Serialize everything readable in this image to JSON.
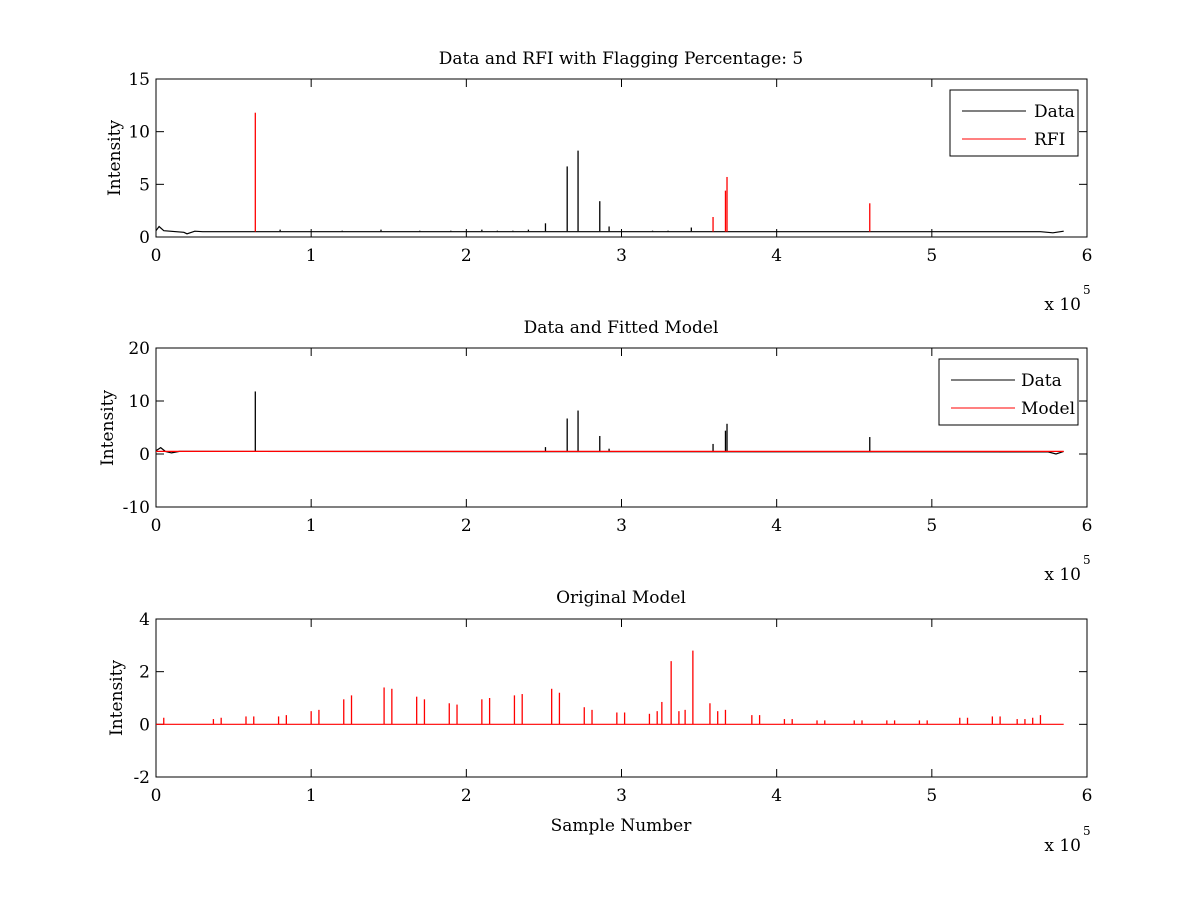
{
  "chart_data": [
    {
      "type": "line",
      "title": "Data and RFI with Flagging Percentage: 5",
      "xlabel": "",
      "ylabel": "Intensity",
      "xlim": [
        0,
        6
      ],
      "ylim": [
        0,
        15
      ],
      "xticks": [
        "0",
        "1",
        "2",
        "3",
        "4",
        "5",
        "6"
      ],
      "yticks": [
        "0",
        "5",
        "10",
        "15"
      ],
      "x_multiplier": "x 10",
      "x_multiplier_exponent": "5",
      "legend": {
        "position": "top-right",
        "entries": [
          {
            "name": "Data",
            "color": "#000000"
          },
          {
            "name": "RFI",
            "color": "#ff0000"
          }
        ]
      },
      "series": [
        {
          "name": "Data",
          "color": "#000000",
          "baseline": [
            [
              0.0,
              0.6
            ],
            [
              0.02,
              1.0
            ],
            [
              0.05,
              0.6
            ],
            [
              0.18,
              0.45
            ],
            [
              0.2,
              0.3
            ],
            [
              0.25,
              0.55
            ],
            [
              0.3,
              0.5
            ],
            [
              5.7,
              0.5
            ],
            [
              5.78,
              0.4
            ],
            [
              5.85,
              0.55
            ]
          ],
          "spikes": [
            [
              0.8,
              0.7
            ],
            [
              1.2,
              0.6
            ],
            [
              1.45,
              0.7
            ],
            [
              1.7,
              0.6
            ],
            [
              1.9,
              0.6
            ],
            [
              2.1,
              0.7
            ],
            [
              2.2,
              0.6
            ],
            [
              2.3,
              0.6
            ],
            [
              2.4,
              0.7
            ],
            [
              2.51,
              1.3
            ],
            [
              2.65,
              6.7
            ],
            [
              2.72,
              8.2
            ],
            [
              2.86,
              3.4
            ],
            [
              2.92,
              1.0
            ],
            [
              3.2,
              0.6
            ],
            [
              3.3,
              0.6
            ],
            [
              3.45,
              0.9
            ]
          ]
        },
        {
          "name": "RFI",
          "color": "#ff0000",
          "spikes": [
            [
              0.64,
              11.8
            ],
            [
              3.59,
              1.9
            ],
            [
              3.67,
              4.4
            ],
            [
              3.68,
              5.7
            ],
            [
              4.6,
              3.2
            ]
          ]
        }
      ]
    },
    {
      "type": "line",
      "title": "Data and Fitted Model",
      "xlabel": "",
      "ylabel": "Intensity",
      "xlim": [
        0,
        6
      ],
      "ylim": [
        -10,
        20
      ],
      "xticks": [
        "0",
        "1",
        "2",
        "3",
        "4",
        "5",
        "6"
      ],
      "yticks": [
        "-10",
        "0",
        "10",
        "20"
      ],
      "x_multiplier": "x 10",
      "x_multiplier_exponent": "5",
      "legend": {
        "position": "top-right",
        "entries": [
          {
            "name": "Data",
            "color": "#000000"
          },
          {
            "name": "Model",
            "color": "#ff0000"
          }
        ]
      },
      "series": [
        {
          "name": "Data",
          "color": "#000000",
          "baseline": [
            [
              0.0,
              0.6
            ],
            [
              0.03,
              1.2
            ],
            [
              0.06,
              0.5
            ],
            [
              0.1,
              0.2
            ],
            [
              0.15,
              0.5
            ],
            [
              5.75,
              0.4
            ],
            [
              5.8,
              0.0
            ],
            [
              5.85,
              0.5
            ]
          ],
          "spikes": [
            [
              0.64,
              11.8
            ],
            [
              2.51,
              1.3
            ],
            [
              2.65,
              6.7
            ],
            [
              2.72,
              8.2
            ],
            [
              2.86,
              3.4
            ],
            [
              2.92,
              1.0
            ],
            [
              3.59,
              1.9
            ],
            [
              3.67,
              4.4
            ],
            [
              3.68,
              5.7
            ],
            [
              4.6,
              3.2
            ]
          ]
        },
        {
          "name": "Model",
          "color": "#ff0000",
          "baseline": [
            [
              0.0,
              0.5
            ],
            [
              5.85,
              0.5
            ]
          ],
          "spikes": []
        }
      ]
    },
    {
      "type": "line",
      "title": "Original Model",
      "xlabel": "Sample Number",
      "ylabel": "Intensity",
      "xlim": [
        0,
        6
      ],
      "ylim": [
        -2,
        4
      ],
      "xticks": [
        "0",
        "1",
        "2",
        "3",
        "4",
        "5",
        "6"
      ],
      "yticks": [
        "-2",
        "0",
        "2",
        "4"
      ],
      "x_multiplier": "x 10",
      "x_multiplier_exponent": "5",
      "series": [
        {
          "color": "#ff0000",
          "baseline": [
            [
              0.0,
              0.0
            ],
            [
              5.85,
              0.0
            ]
          ],
          "spikes": [
            [
              0.05,
              0.25
            ],
            [
              0.37,
              0.2
            ],
            [
              0.42,
              0.25
            ],
            [
              0.58,
              0.3
            ],
            [
              0.63,
              0.3
            ],
            [
              0.79,
              0.3
            ],
            [
              0.84,
              0.35
            ],
            [
              1.0,
              0.5
            ],
            [
              1.05,
              0.55
            ],
            [
              1.21,
              0.95
            ],
            [
              1.26,
              1.1
            ],
            [
              1.47,
              1.4
            ],
            [
              1.52,
              1.35
            ],
            [
              1.68,
              1.05
            ],
            [
              1.73,
              0.95
            ],
            [
              1.89,
              0.8
            ],
            [
              1.94,
              0.75
            ],
            [
              2.1,
              0.95
            ],
            [
              2.15,
              1.0
            ],
            [
              2.31,
              1.1
            ],
            [
              2.36,
              1.15
            ],
            [
              2.55,
              1.35
            ],
            [
              2.6,
              1.2
            ],
            [
              2.76,
              0.65
            ],
            [
              2.81,
              0.55
            ],
            [
              2.97,
              0.45
            ],
            [
              3.02,
              0.45
            ],
            [
              3.18,
              0.4
            ],
            [
              3.23,
              0.5
            ],
            [
              3.26,
              0.85
            ],
            [
              3.32,
              2.4
            ],
            [
              3.37,
              0.5
            ],
            [
              3.41,
              0.55
            ],
            [
              3.46,
              2.8
            ],
            [
              3.57,
              0.8
            ],
            [
              3.62,
              0.5
            ],
            [
              3.67,
              0.55
            ],
            [
              3.84,
              0.35
            ],
            [
              3.89,
              0.35
            ],
            [
              4.05,
              0.2
            ],
            [
              4.1,
              0.2
            ],
            [
              4.26,
              0.15
            ],
            [
              4.31,
              0.15
            ],
            [
              4.5,
              0.15
            ],
            [
              4.55,
              0.15
            ],
            [
              4.71,
              0.15
            ],
            [
              4.76,
              0.15
            ],
            [
              4.92,
              0.15
            ],
            [
              4.97,
              0.15
            ],
            [
              5.18,
              0.25
            ],
            [
              5.23,
              0.25
            ],
            [
              5.39,
              0.3
            ],
            [
              5.44,
              0.3
            ],
            [
              5.55,
              0.2
            ],
            [
              5.6,
              0.2
            ],
            [
              5.65,
              0.25
            ],
            [
              5.7,
              0.35
            ]
          ]
        }
      ]
    }
  ]
}
